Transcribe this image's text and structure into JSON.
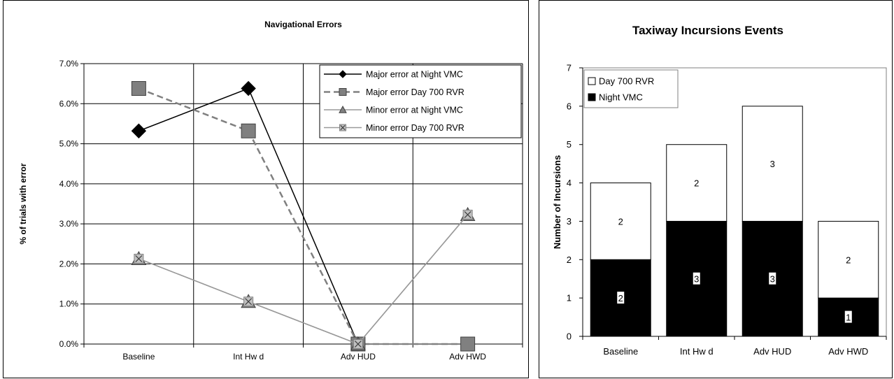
{
  "charts": [
    {
      "id": "navigational-errors",
      "chart_data": {
        "type": "line",
        "title": "Navigational Errors",
        "xlabel": "",
        "ylabel": "% of trials with error",
        "categories": [
          "Baseline",
          "Int Hw d",
          "Adv HUD",
          "Adv HWD"
        ],
        "ylim": [
          0,
          7
        ],
        "yticks": [
          "0.0%",
          "1.0%",
          "2.0%",
          "3.0%",
          "4.0%",
          "5.0%",
          "6.0%",
          "7.0%"
        ],
        "grid": true,
        "legend": "top-right",
        "series": [
          {
            "name": "Major error at Night VMC",
            "values": [
              5.32,
              6.38,
              0,
              null
            ],
            "color": "#000000",
            "dash": "solid",
            "marker": "diamond",
            "marker_fill": "#000000"
          },
          {
            "name": "Major error Day 700 RVR",
            "values": [
              6.38,
              5.32,
              0,
              0
            ],
            "color": "#808080",
            "dash": "dashed",
            "marker": "square",
            "marker_fill": "#808080"
          },
          {
            "name": "Minor error at Night VMC",
            "values": [
              2.13,
              1.06,
              0,
              3.23
            ],
            "color": "#999999",
            "dash": "solid",
            "marker": "triangle",
            "marker_fill": "#808080"
          },
          {
            "name": "Minor error Day 700 RVR",
            "values": [
              2.13,
              1.06,
              0,
              3.23
            ],
            "color": "#999999",
            "dash": "solid",
            "marker": "x-square",
            "marker_fill": "#c0c0c0"
          }
        ]
      }
    },
    {
      "id": "taxiway-incursions",
      "chart_data": {
        "type": "bar",
        "stacked": true,
        "title": "Taxiway Incursions Events",
        "xlabel": "",
        "ylabel": "Number of Incursions",
        "categories": [
          "Baseline",
          "Int Hw d",
          "Adv HUD",
          "Adv HWD"
        ],
        "ylim": [
          0,
          7
        ],
        "yticks": [
          "0",
          "1",
          "2",
          "3",
          "4",
          "5",
          "6",
          "7"
        ],
        "grid": false,
        "legend": "top-left",
        "series": [
          {
            "name": "Night VMC",
            "values": [
              2,
              3,
              3,
              1
            ],
            "color": "#000000",
            "labels": [
              "2",
              "3",
              "3",
              "1"
            ]
          },
          {
            "name": "Day 700 RVR",
            "values": [
              2,
              2,
              3,
              2
            ],
            "color": "#ffffff",
            "labels": [
              "2",
              "2",
              "3",
              "2"
            ]
          }
        ]
      }
    }
  ]
}
